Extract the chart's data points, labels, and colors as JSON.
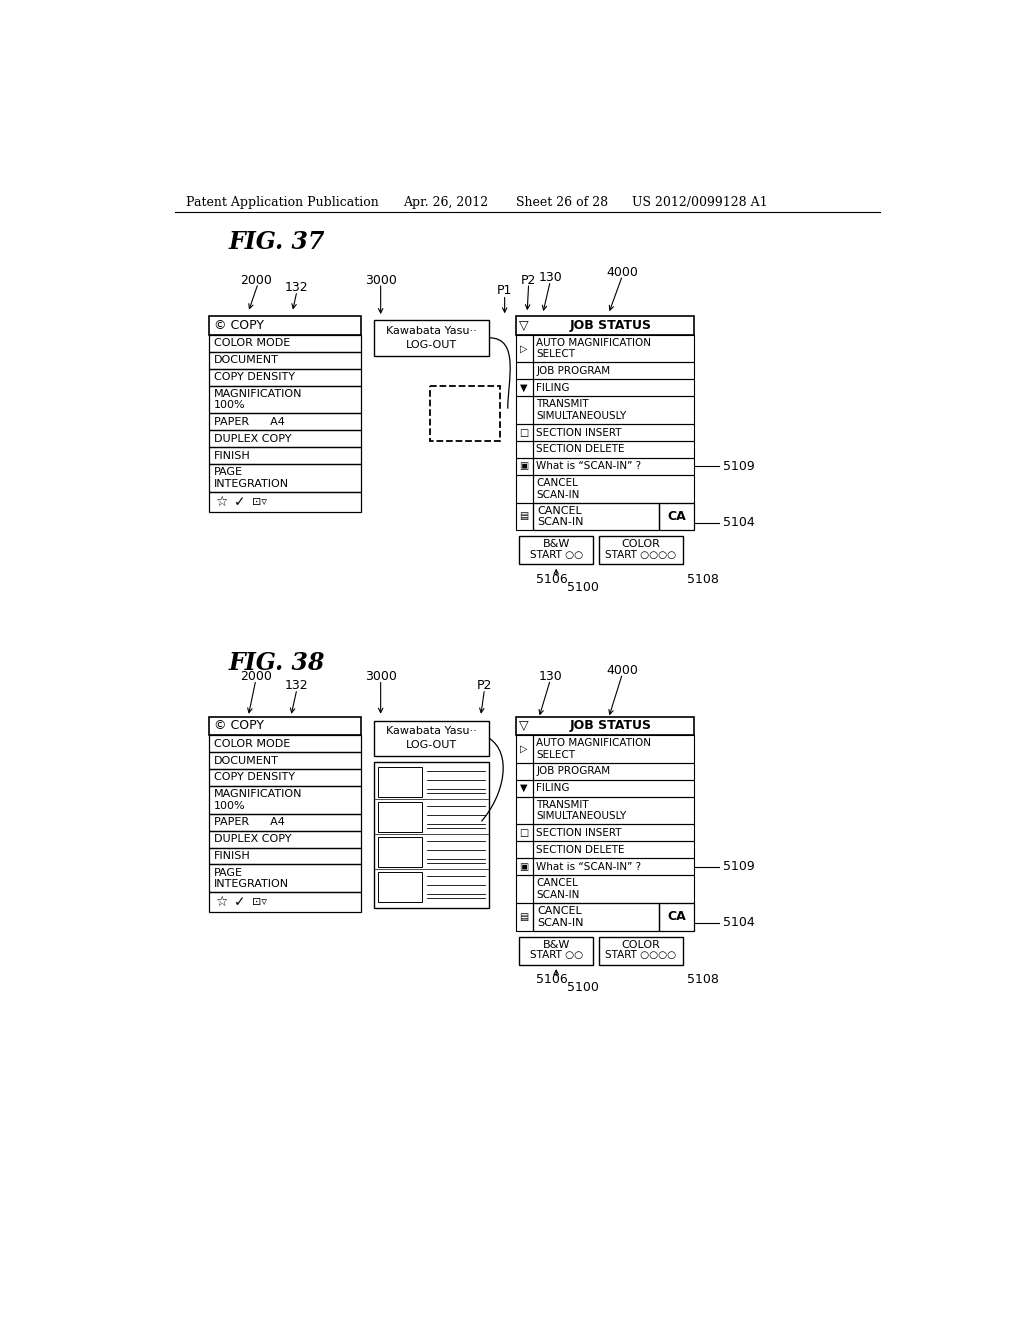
{
  "bg_color": "#ffffff",
  "header_text": "Patent Application Publication",
  "header_date": "Apr. 26, 2012",
  "header_sheet": "Sheet 26 of 28",
  "header_patent": "US 2012/0099128 A1",
  "fig37_title": "FIG. 37",
  "fig38_title": "FIG. 38",
  "left_panel_items": [
    "COLOR MODE",
    "DOCUMENT",
    "COPY DENSITY",
    "MAGNIFICATION\n100%",
    "PAPER      A4",
    "DUPLEX COPY",
    "FINISH",
    "PAGE\nINTEGRATION"
  ],
  "right_panel_items": [
    "AUTO MAGNIFICATION\nSELECT",
    "JOB PROGRAM",
    "FILING",
    "TRANSMIT\nSIMULTANEOUSLY",
    "SECTION INSERT",
    "SECTION DELETE",
    "What is “SCAN-IN” ?",
    "CANCEL\nSCAN-IN"
  ],
  "row_heights_left": [
    22,
    22,
    22,
    36,
    22,
    22,
    22,
    36
  ],
  "row_heights_right": [
    36,
    22,
    22,
    36,
    22,
    22,
    22,
    36
  ]
}
